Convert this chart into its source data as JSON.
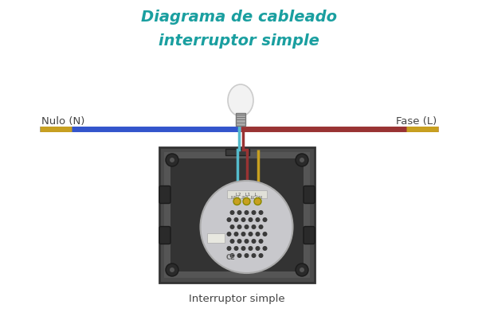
{
  "title_line1": "Diagrama de cableado",
  "title_line2": "interruptor simple",
  "title_color": "#1a9fa0",
  "title_fontsize": 14,
  "bg_color": "#ffffff",
  "label_left": "Nulo (N)",
  "label_right": "Fase (L)",
  "label_bottom": "Interruptor simple",
  "wire_blue_color": "#3355cc",
  "wire_gold_color": "#c8a020",
  "wire_red_color": "#993333",
  "wire_cyan_color": "#55bbcc",
  "switch_box_dark": "#4a4a4a",
  "switch_box_edge": "#333333",
  "switch_plate_color": "#c8c8cc",
  "bulb_fill": "#f2f2f2",
  "bulb_edge": "#cccccc"
}
